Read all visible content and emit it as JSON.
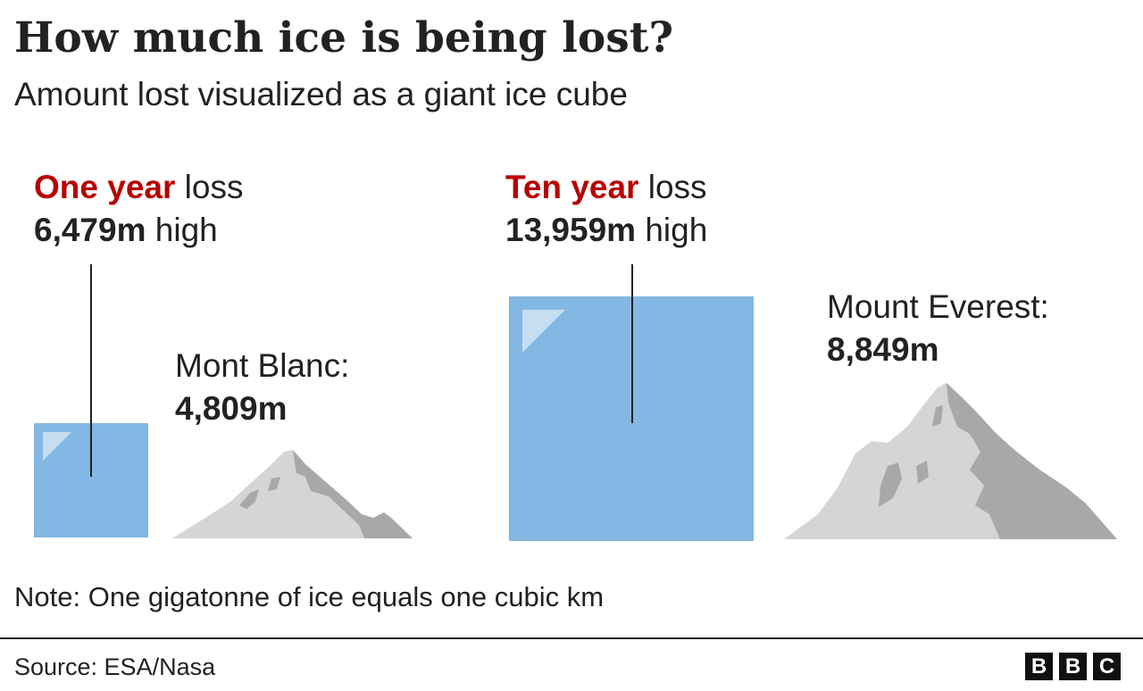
{
  "title": "How much ice is being lost?",
  "subtitle": "Amount lost visualized as a giant ice cube",
  "chart_data": {
    "type": "other",
    "units": "m",
    "cubes": [
      {
        "label_highlight": "One year",
        "label_rest": " loss",
        "value_text": "6,479m",
        "value_suffix": " high",
        "value": 6479
      },
      {
        "label_highlight": "Ten year",
        "label_rest": " loss",
        "value_text": "13,959m",
        "value_suffix": " high",
        "value": 13959
      }
    ],
    "mountains": [
      {
        "name": "Mont Blanc:",
        "height_text": "4,809m",
        "value": 4809
      },
      {
        "name": "Mount Everest:",
        "height_text": "8,849m",
        "value": 8849
      }
    ]
  },
  "note": "Note: One gigatonne of ice equals one cubic km",
  "source": "Source: ESA/Nasa",
  "logo": {
    "letters": [
      "B",
      "B",
      "C"
    ]
  },
  "colors": {
    "accent": "#b80000",
    "cube": "#82b8e3",
    "cube_highlight": "#c5def2",
    "mountain_light": "#d5d5d5",
    "mountain_dark": "#a8a8a8",
    "text": "#222222"
  }
}
